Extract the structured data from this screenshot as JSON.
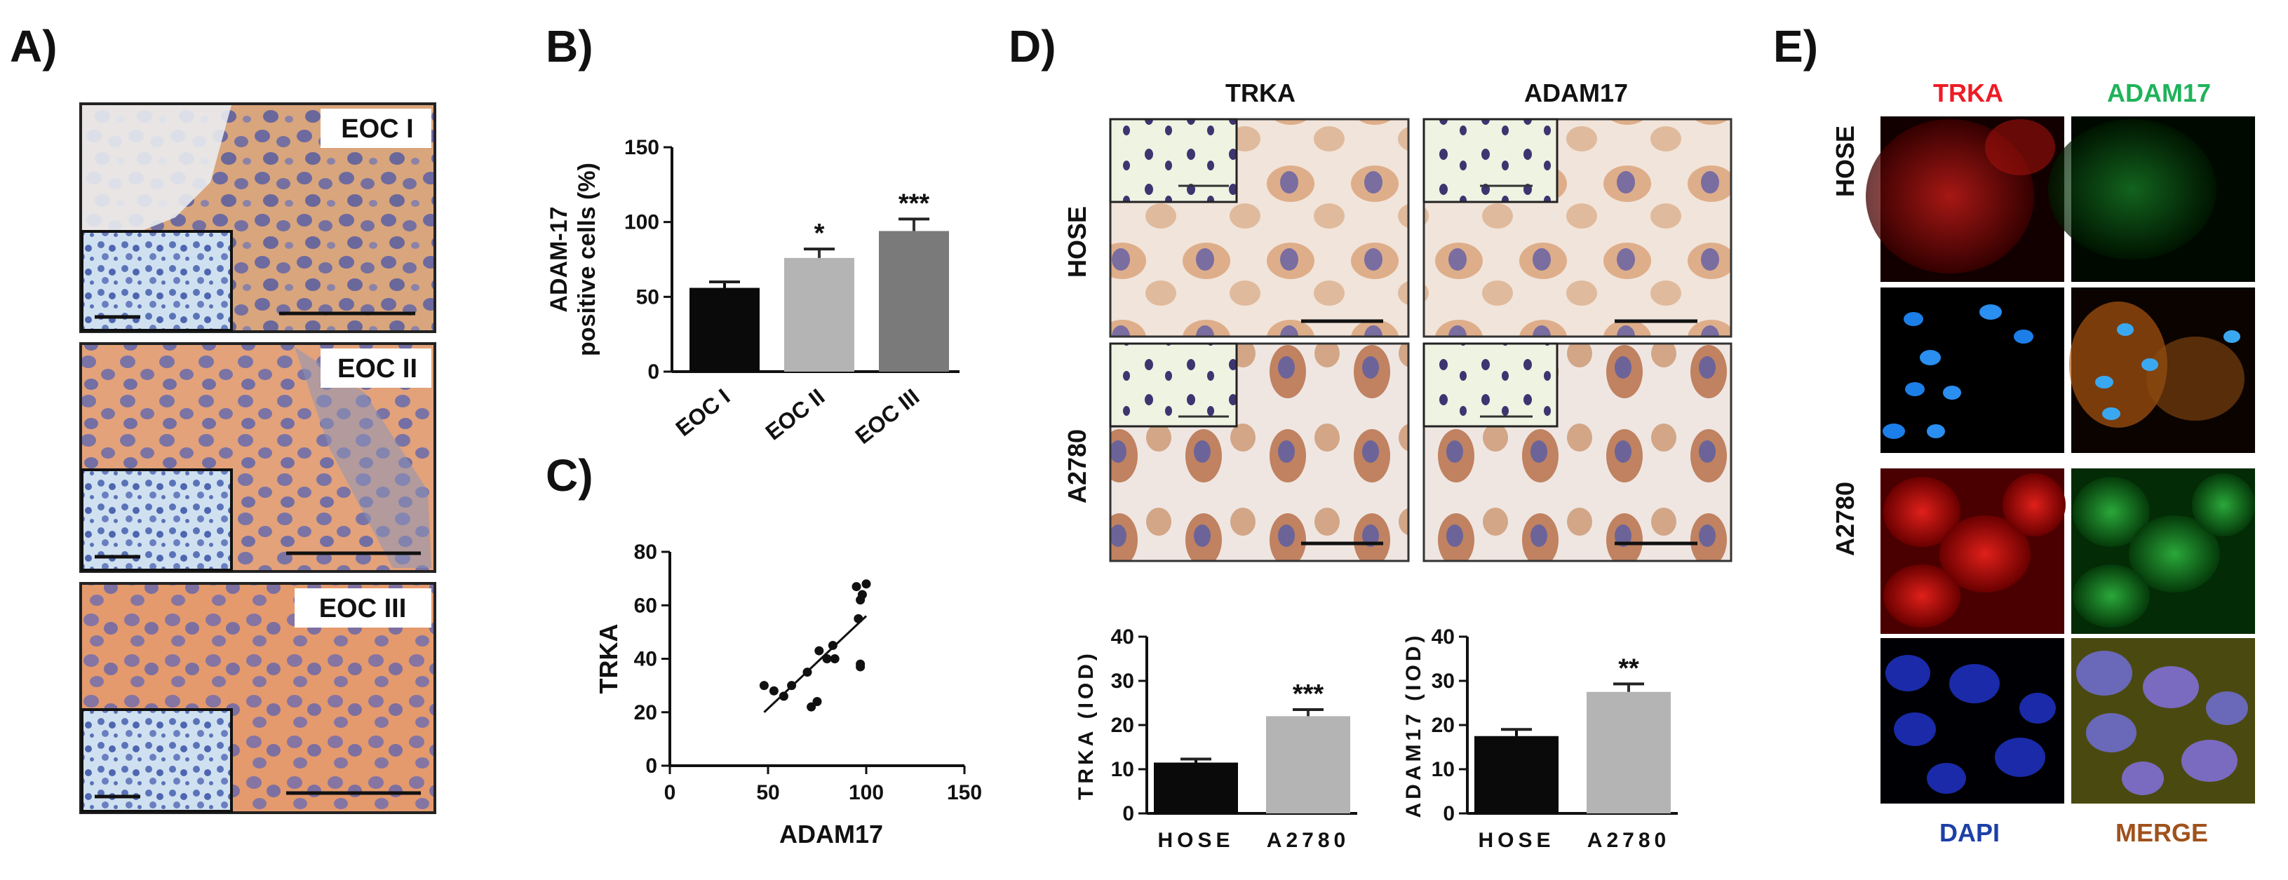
{
  "panel_labels": {
    "a": "A)",
    "b": "B)",
    "c": "C)",
    "d": "D)",
    "e": "E)"
  },
  "panel_a": {
    "image_labels": [
      "EOC I",
      "EOC II",
      "EOC III"
    ]
  },
  "panel_d": {
    "col_titles": [
      "TRKA",
      "ADAM17"
    ],
    "row_titles": [
      "HOSE",
      "A2780"
    ]
  },
  "panel_e": {
    "col_titles_top": [
      "TRKA",
      "ADAM17"
    ],
    "col_titles_bottom": [
      "DAPI",
      "MERGE"
    ],
    "row_titles": [
      "HOSE",
      "A2780"
    ],
    "colors": {
      "trka": "#ee1c24",
      "adam17": "#1fb35a",
      "dapi": "#1d3fa8",
      "merge": "#a0521d"
    }
  },
  "colors": {
    "black_bar": "#0a0a0a",
    "light_gray": "#b4b4b4",
    "dark_gray": "#7a7a7a",
    "ihc_brown": "#c98b5e",
    "ihc_nuclei": "#6b6fa8"
  },
  "chart_data": [
    {
      "id": "B",
      "type": "bar",
      "categories": [
        "EOC I",
        "EOC II",
        "EOC III"
      ],
      "values": [
        56,
        76,
        94
      ],
      "errors": [
        4,
        6,
        8
      ],
      "significance": [
        "",
        "*",
        "***"
      ],
      "ylabel_lines": [
        "ADAM-17",
        "positive cells (%)"
      ],
      "ylim": [
        0,
        150
      ],
      "yticks": [
        "0",
        "50",
        "100",
        "150"
      ]
    },
    {
      "id": "C",
      "type": "scatter",
      "x": [
        48,
        53,
        58,
        62,
        70,
        72,
        75,
        76,
        80,
        83,
        84,
        96,
        97,
        98,
        95,
        97,
        100,
        97
      ],
      "y": [
        30,
        28,
        26,
        30,
        35,
        22,
        24,
        43,
        40,
        45,
        40,
        55,
        62,
        64,
        67,
        38,
        68,
        37
      ],
      "fit": {
        "x": [
          48,
          100
        ],
        "y": [
          20,
          56
        ]
      },
      "xlabel": "ADAM17",
      "ylabel": "TRKA",
      "xlim": [
        0,
        150
      ],
      "ylim": [
        0,
        80
      ],
      "xticks": [
        "0",
        "50",
        "100",
        "150"
      ],
      "yticks": [
        "0",
        "20",
        "40",
        "60",
        "80"
      ]
    },
    {
      "id": "D-TRKA",
      "type": "bar",
      "categories": [
        "HOSE",
        "A2780"
      ],
      "values": [
        11.5,
        22
      ],
      "errors": [
        0.8,
        1.5
      ],
      "significance": [
        "",
        "***"
      ],
      "ylabel": "TRKA (IOD)",
      "ylim": [
        0,
        40
      ],
      "yticks": [
        "0",
        "10",
        "20",
        "30",
        "40"
      ]
    },
    {
      "id": "D-ADAM17",
      "type": "bar",
      "categories": [
        "HOSE",
        "A2780"
      ],
      "values": [
        17.5,
        27.5
      ],
      "errors": [
        1.5,
        1.8
      ],
      "significance": [
        "",
        "**"
      ],
      "ylabel": "ADAM17 (IOD)",
      "ylim": [
        0,
        40
      ],
      "yticks": [
        "0",
        "10",
        "20",
        "30",
        "40"
      ]
    }
  ]
}
